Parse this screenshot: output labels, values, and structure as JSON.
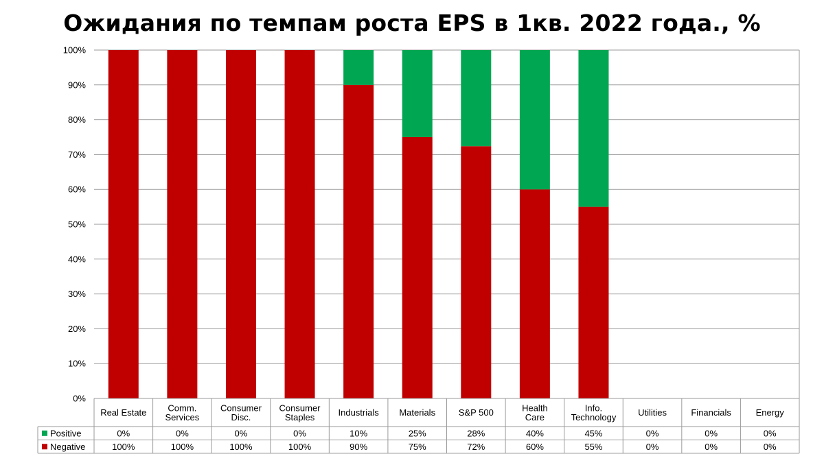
{
  "chart_data": {
    "type": "bar",
    "stacked": true,
    "title": "Ожидания по темпам роста EPS в 1кв. 2022 года., %",
    "categories": [
      [
        "Real Estate"
      ],
      [
        "Comm.",
        "Services"
      ],
      [
        "Consumer",
        "Disc."
      ],
      [
        "Consumer",
        "Staples"
      ],
      [
        "Industrials"
      ],
      [
        "Materials"
      ],
      [
        "S&P 500"
      ],
      [
        "Health",
        "Care"
      ],
      [
        "Info.",
        "Technology"
      ],
      [
        "Utilities"
      ],
      [
        "Financials"
      ],
      [
        "Energy"
      ]
    ],
    "series": [
      {
        "name": "Positive",
        "color": "#00a651",
        "values": [
          0,
          0,
          0,
          0,
          10,
          25,
          27.6,
          40,
          45,
          0,
          0,
          0
        ],
        "labels": [
          "0%",
          "0%",
          "0%",
          "0%",
          "10%",
          "25%",
          "28%",
          "40%",
          "45%",
          "0%",
          "0%",
          "0%"
        ]
      },
      {
        "name": "Negative",
        "color": "#c00000",
        "values": [
          100,
          100,
          100,
          100,
          90,
          75,
          72.4,
          60,
          55,
          0,
          0,
          0
        ],
        "labels": [
          "100%",
          "100%",
          "100%",
          "100%",
          "90%",
          "75%",
          "72%",
          "60%",
          "55%",
          "0%",
          "0%",
          "0%"
        ]
      }
    ],
    "ylim": [
      0,
      100
    ],
    "yticks": [
      "0%",
      "10%",
      "20%",
      "30%",
      "40%",
      "50%",
      "60%",
      "70%",
      "80%",
      "90%",
      "100%"
    ],
    "grid": true,
    "legend": "data-table"
  }
}
